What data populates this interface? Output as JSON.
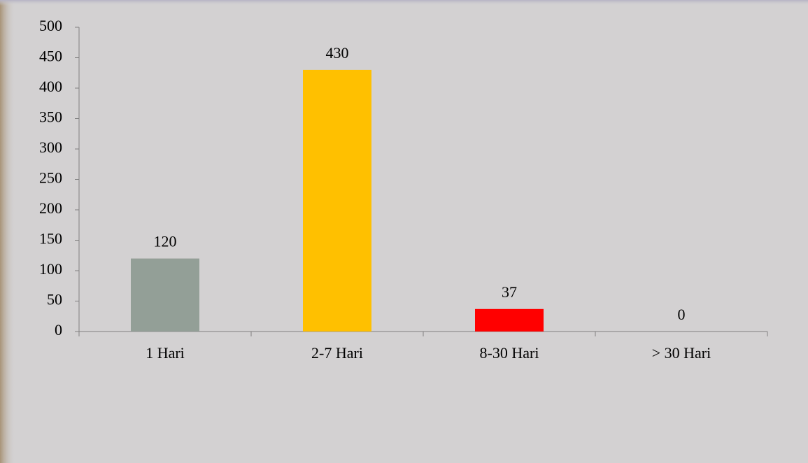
{
  "chart_data": {
    "type": "bar",
    "categories": [
      "1 Hari",
      "2-7 Hari",
      "8-30 Hari",
      "> 30 Hari"
    ],
    "values": [
      120,
      430,
      37,
      0
    ],
    "colors": [
      "#939f97",
      "#ffc000",
      "#ff0000",
      "#4f81bd"
    ],
    "ylim": [
      0,
      500
    ],
    "yticks": [
      0,
      50,
      100,
      150,
      200,
      250,
      300,
      350,
      400,
      450,
      500
    ],
    "grid": false
  }
}
